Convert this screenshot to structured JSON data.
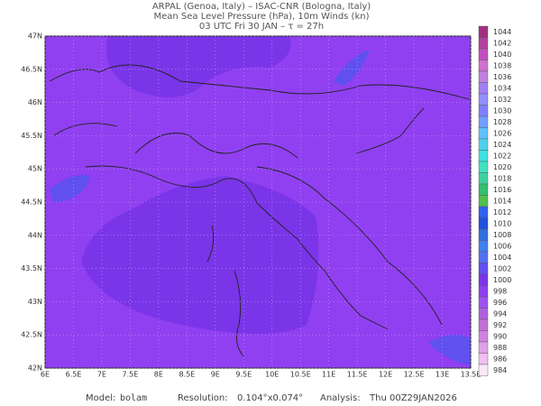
{
  "header": {
    "lines": [
      "ARPAL (Genoa, Italy)  –  ISAC-CNR (Bologna, Italy)",
      "Mean Sea Level Pressure (hPa), 10m Winds (kn)",
      "03 UTC Fri 30 JAN  –  τ = 27h"
    ]
  },
  "map": {
    "xticks": [
      "6E",
      "6.5E",
      "7E",
      "7.5E",
      "8E",
      "8.5E",
      "9E",
      "9.5E",
      "10E",
      "10.5E",
      "11E",
      "11.5E",
      "12E",
      "12.5E",
      "13E",
      "13.5E"
    ],
    "yticks": [
      "47N",
      "46.5N",
      "46N",
      "45.5N",
      "45N",
      "44.5N",
      "44N",
      "43.5N",
      "43N",
      "42.5N",
      "42N"
    ]
  },
  "colorbar": {
    "levels": [
      1044,
      1042,
      1040,
      1038,
      1036,
      1034,
      1032,
      1030,
      1028,
      1026,
      1024,
      1022,
      1020,
      1018,
      1016,
      1014,
      1012,
      1010,
      1008,
      1006,
      1004,
      1002,
      1000,
      998,
      996,
      994,
      992,
      990,
      988,
      986,
      984
    ],
    "colors": [
      "#a0307f",
      "#b040a0",
      "#c050c0",
      "#d070d0",
      "#c080e0",
      "#a080f0",
      "#9090f8",
      "#8080ff",
      "#70a0ff",
      "#60c0ff",
      "#50d0f0",
      "#40e0e0",
      "#40e0c0",
      "#40d0a0",
      "#30c070",
      "#50c050",
      "#3060f0",
      "#2050e0",
      "#3070e0",
      "#4080f0",
      "#5070f0",
      "#6050f0",
      "#7a35e8",
      "#9040f0",
      "#a050f0",
      "#b060e0",
      "#c070d8",
      "#d080e0",
      "#e0a0e8",
      "#f0c0f0",
      "#f8e8f8"
    ]
  },
  "footer": {
    "model_label": "Model:",
    "model": "bolam",
    "resolution_label": "Resolution:",
    "resolution": "0.104°x0.074°",
    "analysis_label": "Analysis:",
    "analysis": "Thu 00Z29JAN2026"
  }
}
